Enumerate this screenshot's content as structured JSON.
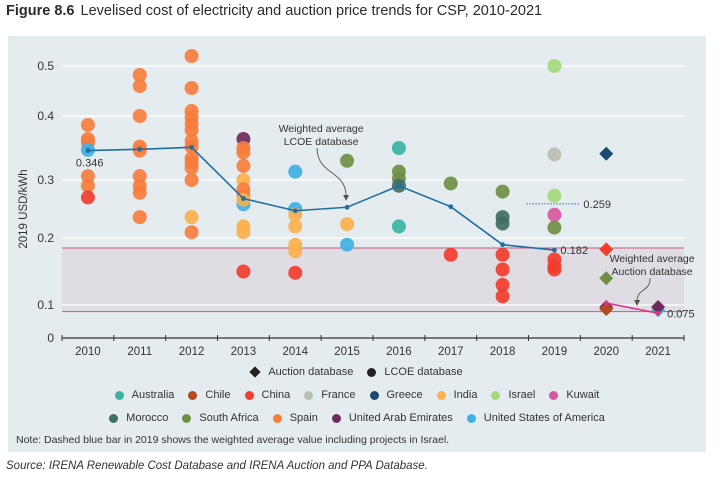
{
  "figure": {
    "number": "Figure 8.6",
    "title": "Levelised cost of electricity and auction price trends for CSP, 2010-2021",
    "note": "Note: Dashed blue bar in 2019 shows the weighted average value including projects in Israel.",
    "source": "Source: IRENA Renewable Cost Database and IRENA Auction and PPA Database."
  },
  "legend": {
    "types": [
      {
        "label": "Auction database",
        "marker": "diamond"
      },
      {
        "label": "LCOE database",
        "marker": "circle"
      }
    ],
    "countries_row1": [
      {
        "label": "Australia",
        "color": "#3bb3a4"
      },
      {
        "label": "Chile",
        "color": "#b5481f"
      },
      {
        "label": "China",
        "color": "#f23d2e"
      },
      {
        "label": "France",
        "color": "#b9bfb1"
      },
      {
        "label": "Greece",
        "color": "#1b4a6e"
      },
      {
        "label": "India",
        "color": "#fbb04d"
      },
      {
        "label": "Israel",
        "color": "#a3d97a"
      },
      {
        "label": "Kuwait",
        "color": "#d9579e"
      }
    ],
    "countries_row2": [
      {
        "label": "Morocco",
        "color": "#3f6e66"
      },
      {
        "label": "South Africa",
        "color": "#6f8f45"
      },
      {
        "label": "Spain",
        "color": "#f77d3b"
      },
      {
        "label": "United Arab Emirates",
        "color": "#6e2a5e"
      },
      {
        "label": "United States of America",
        "color": "#3fb0e4"
      }
    ]
  },
  "chart_data": {
    "type": "scatter",
    "title": "Levelised cost of electricity and auction price trends for CSP, 2010-2021",
    "xlabel": "",
    "ylabel": "2019 USD/kWh",
    "x": [
      "2010",
      "2011",
      "2012",
      "2013",
      "2014",
      "2015",
      "2016",
      "2017",
      "2018",
      "2019",
      "2020",
      "2021"
    ],
    "yticks": [
      "0",
      "0.1",
      "0.2",
      "0.3",
      "0.4",
      "0.5"
    ],
    "ylim": [
      0,
      0.53
    ],
    "grid": true,
    "fossil_fuel_band": [
      0.08,
      0.185
    ],
    "colors": {
      "Australia": "#3bb3a4",
      "Chile": "#b5481f",
      "China": "#f23d2e",
      "France": "#b9bfb1",
      "Greece": "#1b4a6e",
      "India": "#fbb04d",
      "Israel": "#a3d97a",
      "Kuwait": "#d9579e",
      "Morocco": "#3f6e66",
      "South Africa": "#6f8f45",
      "Spain": "#f77d3b",
      "United Arab Emirates": "#6e2a5e",
      "United States of America": "#3fb0e4"
    },
    "lcoe_points": [
      {
        "year": "2010",
        "country": "Spain",
        "value": 0.386
      },
      {
        "year": "2010",
        "country": "Spain",
        "value": 0.364
      },
      {
        "year": "2010",
        "country": "Spain",
        "value": 0.358
      },
      {
        "year": "2010",
        "country": "United States of America",
        "value": 0.347
      },
      {
        "year": "2010",
        "country": "Spain",
        "value": 0.306
      },
      {
        "year": "2010",
        "country": "Spain",
        "value": 0.29
      },
      {
        "year": "2010",
        "country": "China",
        "value": 0.27
      },
      {
        "year": "2011",
        "country": "Spain",
        "value": 0.482
      },
      {
        "year": "2011",
        "country": "Spain",
        "value": 0.46
      },
      {
        "year": "2011",
        "country": "Spain",
        "value": 0.4
      },
      {
        "year": "2011",
        "country": "Spain",
        "value": 0.352
      },
      {
        "year": "2011",
        "country": "Spain",
        "value": 0.346
      },
      {
        "year": "2011",
        "country": "Spain",
        "value": 0.306
      },
      {
        "year": "2011",
        "country": "Spain",
        "value": 0.29
      },
      {
        "year": "2011",
        "country": "Spain",
        "value": 0.278
      },
      {
        "year": "2011",
        "country": "Spain",
        "value": 0.236
      },
      {
        "year": "2012",
        "country": "Spain",
        "value": 0.52
      },
      {
        "year": "2012",
        "country": "Spain",
        "value": 0.456
      },
      {
        "year": "2012",
        "country": "Spain",
        "value": 0.41
      },
      {
        "year": "2012",
        "country": "Spain",
        "value": 0.398
      },
      {
        "year": "2012",
        "country": "Spain",
        "value": 0.388
      },
      {
        "year": "2012",
        "country": "Spain",
        "value": 0.378
      },
      {
        "year": "2012",
        "country": "Spain",
        "value": 0.361
      },
      {
        "year": "2012",
        "country": "Spain",
        "value": 0.352
      },
      {
        "year": "2012",
        "country": "Spain",
        "value": 0.334
      },
      {
        "year": "2012",
        "country": "Spain",
        "value": 0.327
      },
      {
        "year": "2012",
        "country": "Spain",
        "value": 0.319
      },
      {
        "year": "2012",
        "country": "Spain",
        "value": 0.3
      },
      {
        "year": "2012",
        "country": "India",
        "value": 0.236
      },
      {
        "year": "2012",
        "country": "Spain",
        "value": 0.21
      },
      {
        "year": "2013",
        "country": "United Arab Emirates",
        "value": 0.364
      },
      {
        "year": "2013",
        "country": "Spain",
        "value": 0.35
      },
      {
        "year": "2013",
        "country": "Spain",
        "value": 0.343
      },
      {
        "year": "2013",
        "country": "Spain",
        "value": 0.322
      },
      {
        "year": "2013",
        "country": "India",
        "value": 0.3
      },
      {
        "year": "2013",
        "country": "Spain",
        "value": 0.284
      },
      {
        "year": "2013",
        "country": "Spain",
        "value": 0.274
      },
      {
        "year": "2013",
        "country": "United States of America",
        "value": 0.258
      },
      {
        "year": "2013",
        "country": "India",
        "value": 0.266
      },
      {
        "year": "2013",
        "country": "India",
        "value": 0.22
      },
      {
        "year": "2013",
        "country": "India",
        "value": 0.21
      },
      {
        "year": "2013",
        "country": "China",
        "value": 0.15
      },
      {
        "year": "2014",
        "country": "United States of America",
        "value": 0.313
      },
      {
        "year": "2014",
        "country": "United States of America",
        "value": 0.25
      },
      {
        "year": "2014",
        "country": "India",
        "value": 0.24
      },
      {
        "year": "2014",
        "country": "India",
        "value": 0.22
      },
      {
        "year": "2014",
        "country": "India",
        "value": 0.19
      },
      {
        "year": "2014",
        "country": "India",
        "value": 0.18
      },
      {
        "year": "2014",
        "country": "China",
        "value": 0.148
      },
      {
        "year": "2015",
        "country": "South Africa",
        "value": 0.33
      },
      {
        "year": "2015",
        "country": "India",
        "value": 0.224
      },
      {
        "year": "2015",
        "country": "United States of America",
        "value": 0.19
      },
      {
        "year": "2016",
        "country": "Australia",
        "value": 0.35
      },
      {
        "year": "2016",
        "country": "South Africa",
        "value": 0.313
      },
      {
        "year": "2016",
        "country": "South Africa",
        "value": 0.302
      },
      {
        "year": "2016",
        "country": "Morocco",
        "value": 0.29
      },
      {
        "year": "2016",
        "country": "Australia",
        "value": 0.22
      },
      {
        "year": "2017",
        "country": "South Africa",
        "value": 0.294
      },
      {
        "year": "2017",
        "country": "China",
        "value": 0.175
      },
      {
        "year": "2018",
        "country": "South Africa",
        "value": 0.28
      },
      {
        "year": "2018",
        "country": "Morocco",
        "value": 0.236
      },
      {
        "year": "2018",
        "country": "Morocco",
        "value": 0.225
      },
      {
        "year": "2018",
        "country": "China",
        "value": 0.175
      },
      {
        "year": "2018",
        "country": "China",
        "value": 0.153
      },
      {
        "year": "2018",
        "country": "China",
        "value": 0.13
      },
      {
        "year": "2018",
        "country": "China",
        "value": 0.113
      },
      {
        "year": "2019",
        "country": "Israel",
        "value": 0.5
      },
      {
        "year": "2019",
        "country": "France",
        "value": 0.34
      },
      {
        "year": "2019",
        "country": "Israel",
        "value": 0.273
      },
      {
        "year": "2019",
        "country": "Kuwait",
        "value": 0.24
      },
      {
        "year": "2019",
        "country": "South Africa",
        "value": 0.218
      },
      {
        "year": "2019",
        "country": "China",
        "value": 0.168
      },
      {
        "year": "2019",
        "country": "China",
        "value": 0.158
      },
      {
        "year": "2019",
        "country": "China",
        "value": 0.153
      }
    ],
    "auction_points": [
      {
        "year": "2020",
        "country": "Greece",
        "value": 0.341
      },
      {
        "year": "2020",
        "country": "China",
        "value": 0.183
      },
      {
        "year": "2020",
        "country": "South Africa",
        "value": 0.14
      },
      {
        "year": "2020",
        "country": "United Arab Emirates",
        "value": 0.094
      },
      {
        "year": "2020",
        "country": "Chile",
        "value": 0.088
      },
      {
        "year": "2021",
        "country": "Australia",
        "value": 0.084
      },
      {
        "year": "2021",
        "country": "United Arab Emirates",
        "value": 0.094
      }
    ],
    "lcoe_weighted_average": {
      "name": "Weighted average LCOE database",
      "color": "#1f6fa3",
      "points": [
        {
          "year": "2010",
          "value": 0.346
        },
        {
          "year": "2011",
          "value": 0.348
        },
        {
          "year": "2012",
          "value": 0.351
        },
        {
          "year": "2013",
          "value": 0.268
        },
        {
          "year": "2014",
          "value": 0.247
        },
        {
          "year": "2015",
          "value": 0.253
        },
        {
          "year": "2016",
          "value": 0.29
        },
        {
          "year": "2017",
          "value": 0.254
        },
        {
          "year": "2018",
          "value": 0.19
        },
        {
          "year": "2019",
          "value": 0.182
        }
      ]
    },
    "auction_weighted_average": {
      "name": "Weighted average Auction database",
      "color": "#e0338a",
      "points": [
        {
          "year": "2020",
          "value": 0.103
        },
        {
          "year": "2021",
          "value": 0.075
        }
      ]
    },
    "israel_inclusive_average_2019": {
      "year": "2019",
      "value": 0.259,
      "style": "dashed"
    },
    "annotations": [
      {
        "text": "0.346",
        "target": "lcoe_weighted_average.2010"
      },
      {
        "text": "0.182",
        "target": "lcoe_weighted_average.2019"
      },
      {
        "text": "0.259",
        "target": "israel_inclusive_average_2019"
      },
      {
        "text": "0.075",
        "target": "auction_weighted_average.2021"
      },
      {
        "text": "Weighted average LCOE database",
        "target": "lcoe_weighted_average.2015"
      },
      {
        "text": "Weighted average Auction database",
        "target": "auction_weighted_average"
      }
    ],
    "labels": {
      "lcoe_avg_2010": "0.346",
      "lcoe_avg_2019": "0.182",
      "israel_avg_2019": "0.259",
      "auction_avg_2021": "0.075",
      "lcoe_callout_line1": "Weighted average",
      "lcoe_callout_line2": "LCOE database",
      "auction_callout_line1": "Weighted average",
      "auction_callout_line2": "Auction database"
    }
  }
}
